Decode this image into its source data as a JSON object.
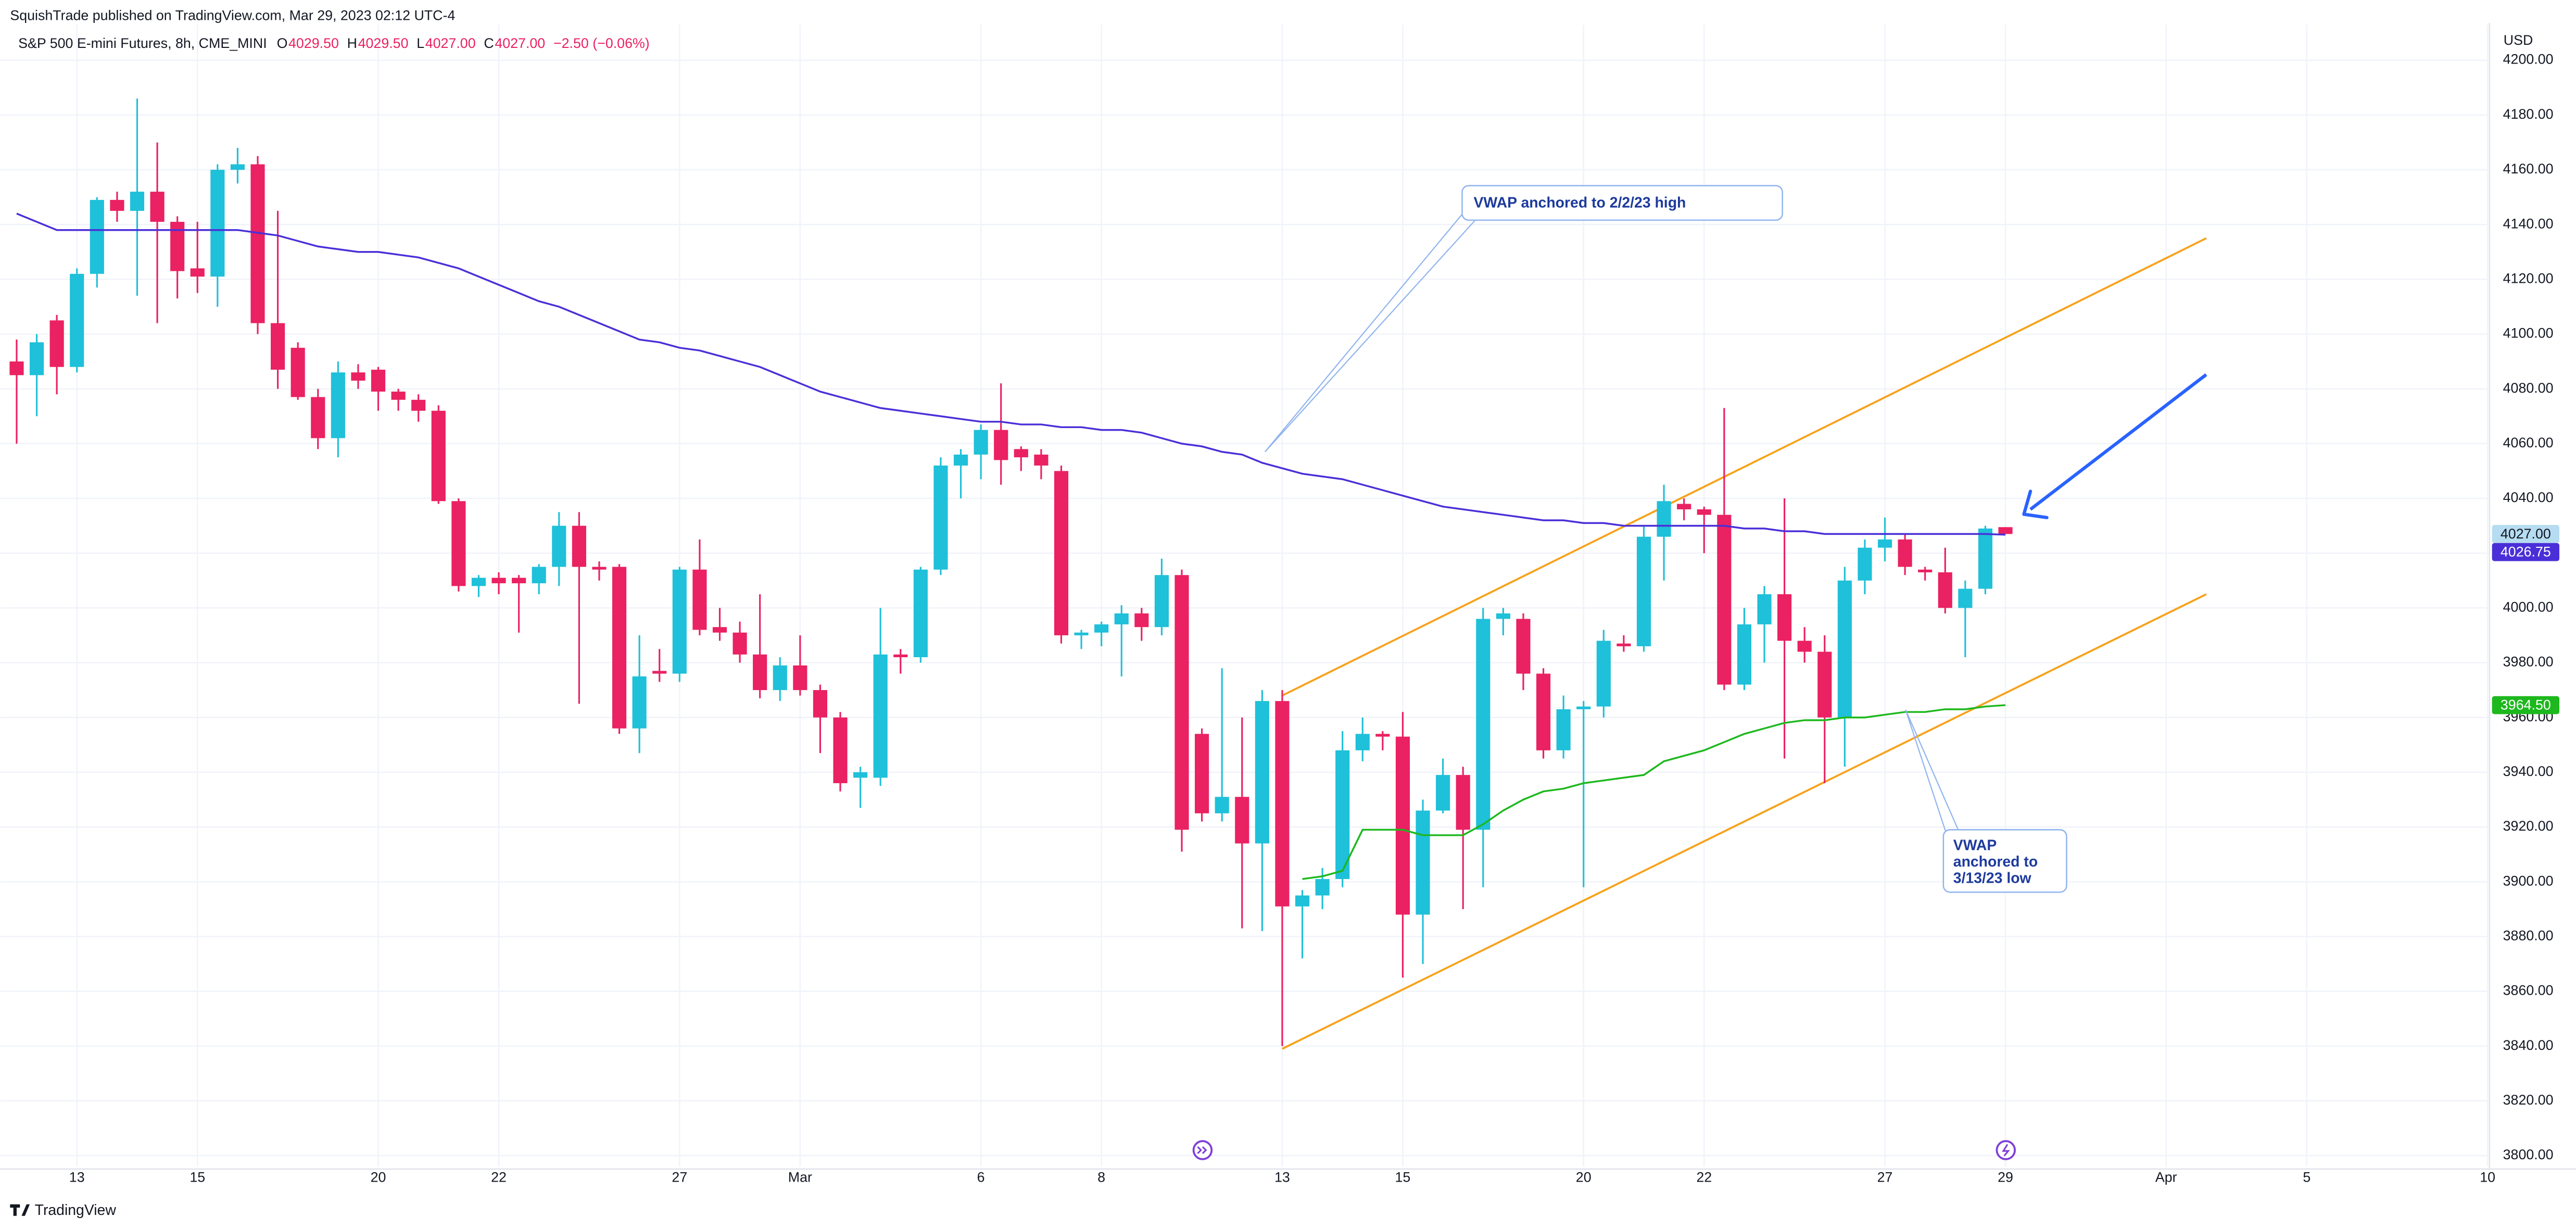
{
  "chart_data": {
    "type": "candlestick",
    "header": "SquishTrade published on TradingView.com, Mar 29, 2023 02:12 UTC-4",
    "legend": {
      "name": "S&P 500 E-mini Futures, 8h, CME_MINI",
      "items": [
        {
          "key": "O",
          "label": "4029.50"
        },
        {
          "key": "H",
          "label": "4029.50"
        },
        {
          "key": "L",
          "label": "4027.00"
        },
        {
          "key": "C",
          "label": "4027.00"
        }
      ],
      "change": "−2.50 (−0.06%)"
    },
    "brand": "TradingView",
    "y_unit": "USD",
    "up_color": "#1fc0d9",
    "down_color": "#ea2162",
    "last_label": "4027.00",
    "categories": [
      null,
      null,
      null,
      "13",
      null,
      null,
      null,
      null,
      null,
      "15",
      null,
      null,
      null,
      null,
      null,
      null,
      null,
      null,
      "20",
      null,
      null,
      null,
      null,
      null,
      "22",
      null,
      null,
      null,
      null,
      null,
      null,
      null,
      null,
      "27",
      null,
      null,
      null,
      null,
      null,
      "Mar",
      null,
      null,
      null,
      null,
      null,
      null,
      null,
      null,
      "6",
      null,
      null,
      null,
      null,
      null,
      "8",
      null,
      null,
      null,
      null,
      null,
      null,
      null,
      null,
      "13",
      null,
      null,
      null,
      null,
      null,
      "15",
      null,
      null,
      null,
      null,
      null,
      null,
      null,
      null,
      "20",
      null,
      null,
      null,
      null,
      null,
      "22",
      null,
      null,
      null,
      null,
      null,
      null,
      null,
      null,
      "27",
      null,
      null,
      null,
      null,
      null,
      "29",
      null,
      null,
      null,
      null,
      null,
      null,
      null,
      "Apr",
      null,
      null,
      null,
      null,
      null,
      null,
      "5",
      null,
      null,
      null,
      null,
      null,
      null,
      null,
      null,
      "10"
    ],
    "open": [
      4090,
      4085,
      4105,
      4088,
      4122,
      4149,
      4145,
      4152,
      4141,
      4124,
      4121,
      4160,
      4162,
      4104,
      4095,
      4077,
      4062,
      4086,
      4087,
      4079,
      4076,
      4072,
      4039,
      4008,
      4011,
      4011,
      4009,
      4015,
      4030,
      4015,
      4015,
      3956,
      3977,
      3976,
      4014,
      3993,
      3991,
      3983,
      3970,
      3979,
      3970,
      3960,
      3938,
      3938,
      3983,
      3982,
      4014,
      4052,
      4056,
      4065,
      4058,
      4056,
      4050,
      3990,
      3991,
      3994,
      3998,
      3993,
      4012,
      3954,
      3925,
      3931,
      3914,
      3966,
      3891,
      3895,
      3901,
      3948,
      3954,
      3953,
      3888,
      3926,
      3939,
      3919,
      3996,
      3996,
      3976,
      3948,
      3963,
      3964,
      3987,
      3986,
      4026,
      4038,
      4036,
      4034,
      3972,
      3994,
      4005,
      3988,
      3984,
      3960,
      4010,
      4022,
      4025,
      4014,
      4013,
      4000,
      4007,
      4029.5,
      null,
      null,
      null,
      null,
      null,
      null,
      null,
      null,
      null,
      null,
      null,
      null,
      null,
      null,
      null,
      null,
      null,
      null,
      null,
      null,
      null,
      null,
      null,
      null
    ],
    "high": [
      4098,
      4100,
      4107,
      4124,
      4150,
      4152,
      4186,
      4170,
      4143,
      4141,
      4162,
      4168,
      4165,
      4145,
      4097,
      4080,
      4090,
      4089,
      4088,
      4080,
      4078,
      4074,
      4040,
      4012,
      4013,
      4012,
      4016,
      4035,
      4035,
      4017,
      4016,
      3990,
      3985,
      4015,
      4025,
      4000,
      3995,
      4005,
      3982,
      3990,
      3972,
      3962,
      3942,
      4000,
      3985,
      4015,
      4055,
      4058,
      4067,
      4082,
      4059,
      4058,
      4052,
      3992,
      3995,
      4001,
      4000,
      4018,
      4014,
      3956,
      3978,
      3960,
      3970,
      3970,
      3897,
      3905,
      3955,
      3960,
      3955,
      3962,
      3930,
      3945,
      3942,
      4000,
      4000,
      3998,
      3978,
      3968,
      3966,
      3992,
      3990,
      4030,
      4045,
      4040,
      4037,
      4073,
      4000,
      4008,
      4040,
      3993,
      3990,
      4015,
      4025,
      4033,
      4027,
      4015,
      4022,
      4010,
      4030,
      4029.5,
      null,
      null,
      null,
      null,
      null,
      null,
      null,
      null,
      null,
      null,
      null,
      null,
      null,
      null,
      null,
      null,
      null,
      null,
      null,
      null,
      null,
      null,
      null,
      null
    ],
    "low": [
      4060,
      4070,
      4078,
      4086,
      4117,
      4141,
      4114,
      4104,
      4113,
      4115,
      4110,
      4155,
      4100,
      4080,
      4076,
      4058,
      4055,
      4080,
      4072,
      4072,
      4068,
      4038,
      4006,
      4004,
      4005,
      3991,
      4005,
      4008,
      3965,
      4010,
      3954,
      3947,
      3973,
      3973,
      3990,
      3988,
      3980,
      3967,
      3966,
      3968,
      3947,
      3933,
      3927,
      3935,
      3976,
      3980,
      4012,
      4040,
      4047,
      4045,
      4050,
      4047,
      3987,
      3985,
      3986,
      3975,
      3988,
      3990,
      3911,
      3922,
      3922,
      3883,
      3882,
      3840,
      3872,
      3890,
      3898,
      3944,
      3948,
      3865,
      3870,
      3925,
      3890,
      3898,
      3990,
      3970,
      3945,
      3945,
      3898,
      3960,
      3984,
      3984,
      4010,
      4032,
      4020,
      3970,
      3970,
      3980,
      3945,
      3980,
      3936,
      3942,
      4005,
      4017,
      4012,
      4010,
      3998,
      3982,
      4005,
      4027,
      null,
      null,
      null,
      null,
      null,
      null,
      null,
      null,
      null,
      null,
      null,
      null,
      null,
      null,
      null,
      null,
      null,
      null,
      null,
      null,
      null,
      null,
      null,
      null
    ],
    "close": [
      4085,
      4097,
      4088,
      4122,
      4149,
      4145,
      4152,
      4141,
      4123,
      4121,
      4160,
      4162,
      4104,
      4087,
      4077,
      4062,
      4086,
      4083,
      4079,
      4076,
      4072,
      4039,
      4008,
      4011,
      4009,
      4009,
      4015,
      4030,
      4015,
      4014,
      3956,
      3975,
      3976,
      4014,
      3992,
      3991,
      3983,
      3970,
      3979,
      3970,
      3960,
      3936,
      3940,
      3983,
      3982,
      4014,
      4052,
      4056,
      4065,
      4054,
      4055,
      4052,
      3990,
      3991,
      3994,
      3998,
      3993,
      4012,
      3919,
      3925,
      3931,
      3914,
      3966,
      3891,
      3895,
      3901,
      3948,
      3954,
      3953,
      3888,
      3926,
      3939,
      3919,
      3996,
      3998,
      3976,
      3948,
      3963,
      3964,
      3988,
      3986,
      4026,
      4039,
      4036,
      4034,
      3972,
      3994,
      4005,
      3988,
      3984,
      3960,
      4010,
      4022,
      4025,
      4015,
      4013,
      4000,
      4007,
      4029,
      4027,
      null,
      null,
      null,
      null,
      null,
      null,
      null,
      null,
      null,
      null,
      null,
      null,
      null,
      null,
      null,
      null,
      null,
      null,
      null,
      null,
      null,
      null,
      null,
      null
    ],
    "series": [
      {
        "color": "#4a2fd8",
        "last_label": "4026.75",
        "values": [
          4144,
          4141,
          4138,
          4138,
          4138,
          4138,
          4138,
          4138,
          4138,
          4138,
          4138,
          4138,
          4137,
          4136,
          4134,
          4132,
          4131,
          4130,
          4130,
          4129,
          4128,
          4126,
          4124,
          4121,
          4118,
          4115,
          4112,
          4110,
          4107,
          4104,
          4101,
          4098,
          4097,
          4095,
          4094,
          4092,
          4090,
          4088,
          4085,
          4082,
          4079,
          4077,
          4075,
          4073,
          4072,
          4071,
          4070,
          4069,
          4068,
          4068,
          4067,
          4067,
          4066,
          4066,
          4065,
          4065,
          4064,
          4062,
          4060,
          4059,
          4057,
          4056,
          4053,
          4051,
          4049,
          4048,
          4047,
          4045,
          4043,
          4041,
          4039,
          4037,
          4036,
          4035,
          4034,
          4033,
          4032,
          4032,
          4031,
          4031,
          4030,
          4030,
          4030,
          4030,
          4030,
          4030,
          4029,
          4029,
          4028,
          4028,
          4027,
          4027,
          4027,
          4027,
          4027,
          4027,
          4027,
          4027,
          4027,
          4026.75,
          null,
          null,
          null,
          null,
          null,
          null,
          null,
          null,
          null,
          null,
          null,
          null,
          null,
          null,
          null,
          null,
          null,
          null,
          null,
          null,
          null,
          null,
          null,
          null
        ]
      },
      {
        "color": "#1db81d",
        "last_label": "3964.50",
        "values": [
          null,
          null,
          null,
          null,
          null,
          null,
          null,
          null,
          null,
          null,
          null,
          null,
          null,
          null,
          null,
          null,
          null,
          null,
          null,
          null,
          null,
          null,
          null,
          null,
          null,
          null,
          null,
          null,
          null,
          null,
          null,
          null,
          null,
          null,
          null,
          null,
          null,
          null,
          null,
          null,
          null,
          null,
          null,
          null,
          null,
          null,
          null,
          null,
          null,
          null,
          null,
          null,
          null,
          null,
          null,
          null,
          null,
          null,
          null,
          null,
          null,
          null,
          null,
          null,
          3901,
          3902,
          3904,
          3919,
          3919,
          3919,
          3917,
          3917,
          3917,
          3921,
          3926,
          3930,
          3933,
          3934,
          3936,
          3937,
          3938,
          3939,
          3944,
          3946,
          3948,
          3951,
          3954,
          3956,
          3958,
          3959,
          3959,
          3960,
          3960,
          3961,
          3962,
          3962,
          3963,
          3963,
          3964,
          3964.5,
          null,
          null,
          null,
          null,
          null,
          null,
          null,
          null,
          null,
          null,
          null,
          null,
          null,
          null,
          null,
          null,
          null,
          null,
          null,
          null,
          null,
          null,
          null,
          null
        ]
      }
    ],
    "trendlines": [
      {
        "color": "#f7a21b",
        "start": [
          63,
          3968
        ],
        "end": [
          109,
          4135
        ]
      },
      {
        "color": "#f7a21b",
        "start": [
          63,
          3839
        ],
        "end": [
          109,
          4005
        ]
      }
    ],
    "annotations": [
      {
        "lines": [
          "VWAP anchored to 2/2/23 high"
        ]
      },
      {
        "lines": [
          "VWAP",
          "anchored to",
          "3/13/23 low"
        ]
      }
    ],
    "ylim": [
      3796,
      4213
    ],
    "yticks": [
      {
        "value": 3800,
        "label": "3800.00"
      },
      {
        "value": 3820,
        "label": "3820.00"
      },
      {
        "value": 3840,
        "label": "3840.00"
      },
      {
        "value": 3860,
        "label": "3860.00"
      },
      {
        "value": 3880,
        "label": "3880.00"
      },
      {
        "value": 3900,
        "label": "3900.00"
      },
      {
        "value": 3920,
        "label": "3920.00"
      },
      {
        "value": 3940,
        "label": "3940.00"
      },
      {
        "value": 3960,
        "label": "3960.00"
      },
      {
        "value": 3980,
        "label": "3980.00"
      },
      {
        "value": 4000,
        "label": "4000.00"
      },
      {
        "value": 4020,
        "label": "4020.00"
      },
      {
        "value": 4040,
        "label": "4040.00"
      },
      {
        "value": 4060,
        "label": "4060.00"
      },
      {
        "value": 4080,
        "label": "4080.00"
      },
      {
        "value": 4100,
        "label": "4100.00"
      },
      {
        "value": 4120,
        "label": "4120.00"
      },
      {
        "value": 4140,
        "label": "4140.00"
      },
      {
        "value": 4160,
        "label": "4160.00"
      },
      {
        "value": 4180,
        "label": "4180.00"
      },
      {
        "value": 4200,
        "label": "4200.00"
      }
    ],
    "grid": true
  }
}
